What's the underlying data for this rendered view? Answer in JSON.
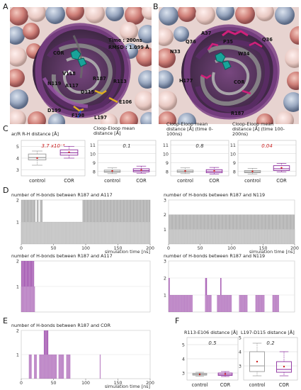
{
  "panels": {
    "a": "A",
    "b": "B",
    "c": "C",
    "d": "D",
    "e": "E",
    "f": "F"
  },
  "panel_a": {
    "info_time": "Time : 200ns",
    "info_rmsd": "RMSD : 1.099 Å",
    "residues": [
      "COR",
      "V118",
      "N119",
      "A117",
      "R187",
      "R113",
      "D115",
      "E106",
      "D199",
      "F198",
      "L197"
    ]
  },
  "panel_b": {
    "residues": [
      "A37",
      "Q36",
      "Q36",
      "P35",
      "W34",
      "N33",
      "H177",
      "COR",
      "R187"
    ]
  },
  "colors": {
    "control": "#999999",
    "cor": "#8b2a9c",
    "accent_text": "#cc2222"
  },
  "chart_data": [
    {
      "type": "box",
      "title": "ar/R R-H distance [Å]",
      "categories": [
        "control",
        "COR"
      ],
      "annotation": "3.7 x10⁻⁴",
      "annotation_significant": true,
      "ylim": [
        2.5,
        5.5
      ],
      "yticks": [
        3,
        4,
        5
      ],
      "boxes": [
        {
          "q1": 3.85,
          "median": 4.05,
          "q3": 4.35,
          "min": 3.4,
          "max": 4.6,
          "mean": 4.0
        },
        {
          "q1": 4.25,
          "median": 4.45,
          "q3": 4.7,
          "min": 4.0,
          "max": 5.0,
          "mean": 4.5
        }
      ]
    },
    {
      "type": "box",
      "title": "Cloop-Eloop mean distance [Å]",
      "categories": [
        "control",
        "COR"
      ],
      "annotation": "0.1",
      "annotation_significant": false,
      "ylim": [
        7.5,
        11.5
      ],
      "yticks": [
        8,
        9,
        10,
        11
      ],
      "boxes": [
        {
          "q1": 7.9,
          "median": 8.0,
          "q3": 8.15,
          "min": 7.75,
          "max": 8.4,
          "mean": 8.05
        },
        {
          "q1": 7.95,
          "median": 8.1,
          "q3": 8.3,
          "min": 7.8,
          "max": 8.6,
          "mean": 8.15
        }
      ]
    },
    {
      "type": "box",
      "title": "Cloop-Eloop mean distance [Å] (time 0-100ns)",
      "categories": [
        "control",
        "COR"
      ],
      "annotation": "0.8",
      "annotation_significant": false,
      "ylim": [
        7.5,
        11.5
      ],
      "yticks": [
        8,
        9,
        10,
        11
      ],
      "boxes": [
        {
          "q1": 7.9,
          "median": 8.0,
          "q3": 8.15,
          "min": 7.75,
          "max": 8.4,
          "mean": 8.05
        },
        {
          "q1": 7.85,
          "median": 8.0,
          "q3": 8.2,
          "min": 7.7,
          "max": 8.45,
          "mean": 8.05
        }
      ]
    },
    {
      "type": "box",
      "title": "Cloop-Eloop mean distance [Å] (time 100-200ns)",
      "categories": [
        "control",
        "COR"
      ],
      "annotation": "0.04",
      "annotation_significant": true,
      "ylim": [
        7.5,
        11.5
      ],
      "yticks": [
        8,
        9,
        10,
        11
      ],
      "boxes": [
        {
          "q1": 7.85,
          "median": 7.95,
          "q3": 8.1,
          "min": 7.7,
          "max": 8.35,
          "mean": 8.0
        },
        {
          "q1": 8.1,
          "median": 8.3,
          "q3": 8.65,
          "min": 7.95,
          "max": 8.9,
          "mean": 8.4
        }
      ]
    },
    {
      "type": "timeline",
      "title": "number of H-bonds between R187 and A117",
      "series": "control",
      "ylim": [
        0,
        2
      ],
      "yticks": [
        1,
        2
      ],
      "xlim": [
        0,
        200
      ],
      "xticks": [
        0,
        50,
        100,
        150,
        200
      ],
      "xlabel": "simulation time [ns]",
      "level2_intervals": [
        [
          0,
          22
        ],
        [
          24,
          27
        ],
        [
          29,
          33
        ],
        [
          95,
          200
        ]
      ],
      "level1_intervals": [
        [
          0,
          200
        ]
      ]
    },
    {
      "type": "timeline",
      "title": "number of H-bonds between R187 and N119",
      "series": "control",
      "ylim": [
        0,
        3
      ],
      "yticks": [
        1,
        2,
        3
      ],
      "xlim": [
        0,
        200
      ],
      "xticks": [
        0,
        50,
        100,
        150,
        200
      ],
      "xlabel": "simulation time [ns]",
      "level2_intervals": [
        [
          0,
          200
        ]
      ],
      "level1_intervals": [
        [
          0,
          200
        ]
      ]
    },
    {
      "type": "timeline",
      "title": "number of H-bonds between R187 and A117",
      "series": "COR",
      "ylim": [
        0,
        2
      ],
      "yticks": [
        1,
        2
      ],
      "xlim": [
        0,
        200
      ],
      "xticks": [],
      "xlabel": "",
      "level2_intervals": [
        [
          0,
          20
        ]
      ],
      "level1_intervals": [
        [
          0,
          21
        ]
      ]
    },
    {
      "type": "timeline",
      "title": "number of H-bonds between R187 and N119",
      "series": "COR",
      "ylim": [
        0,
        3
      ],
      "yticks": [
        1,
        2,
        3
      ],
      "xlim": [
        0,
        200
      ],
      "xticks": [],
      "xlabel": "",
      "level2_intervals": [
        [
          0,
          2
        ],
        [
          58,
          61
        ],
        [
          82,
          84
        ]
      ],
      "level1_intervals": [
        [
          0,
          38
        ],
        [
          58,
          68
        ],
        [
          77,
          100
        ],
        [
          112,
          125
        ],
        [
          138,
          152
        ],
        [
          165,
          175
        ]
      ]
    },
    {
      "type": "timeline",
      "title": "number of H-bonds between R187 and COR",
      "series": "COR",
      "ylim": [
        0,
        2
      ],
      "yticks": [
        1,
        2
      ],
      "xlim": [
        0,
        200
      ],
      "xticks": [
        0,
        50,
        100,
        150,
        200
      ],
      "xlabel": "simulation time [ns]",
      "level2_intervals": [
        [
          35,
          42
        ]
      ],
      "level1_intervals": [
        [
          12,
          16
        ],
        [
          20,
          24
        ],
        [
          28,
          55
        ],
        [
          58,
          66
        ],
        [
          70,
          76
        ],
        [
          122,
          123
        ]
      ]
    },
    {
      "type": "box",
      "title": "R113-E106 distance [Å]",
      "categories": [
        "control",
        "COR"
      ],
      "annotation": "0.5",
      "annotation_significant": false,
      "ylim": [
        2.5,
        5.5
      ],
      "yticks": [
        3,
        4,
        5
      ],
      "boxes": [
        {
          "q1": 2.85,
          "median": 2.9,
          "q3": 2.97,
          "min": 2.78,
          "max": 3.05,
          "mean": 2.9
        },
        {
          "q1": 2.83,
          "median": 2.9,
          "q3": 3.0,
          "min": 2.75,
          "max": 3.1,
          "mean": 2.92
        }
      ]
    },
    {
      "type": "box",
      "title": "L197-D115 distance [Å]",
      "categories": [
        "control",
        "COR"
      ],
      "annotation": "0.2",
      "annotation_significant": false,
      "ylim": [
        2,
        5
      ],
      "yticks": [
        3,
        4,
        5
      ],
      "boxes": [
        {
          "q1": 2.6,
          "median": 3.0,
          "q3": 4.0,
          "min": 2.3,
          "max": 4.6,
          "mean": 3.3
        },
        {
          "q1": 2.55,
          "median": 2.75,
          "q3": 3.3,
          "min": 2.3,
          "max": 4.0,
          "mean": 2.95
        }
      ]
    }
  ]
}
